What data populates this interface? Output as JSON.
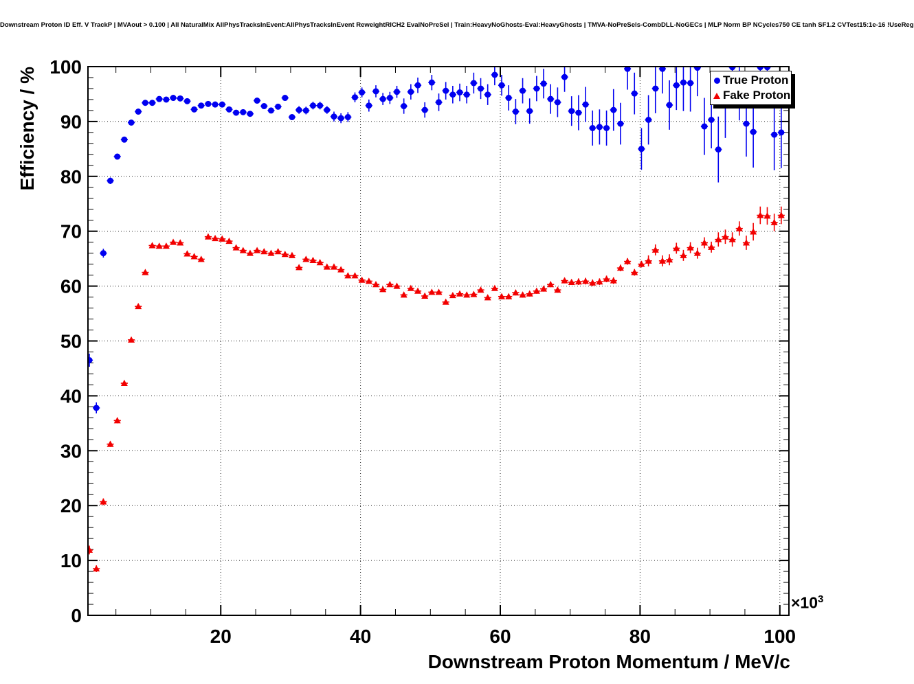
{
  "title": "Downstream Proton ID Eff. V TrackP | MVAout > 0.100 | All NaturalMix AllPhysTracksInEvent:AllPhysTracksInEvent ReweightRICH2 EvalNoPreSel | Train:HeavyNoGhosts-Eval:HeavyGhosts | TMVA-NoPreSels-CombDLL-NoGECs | MLP Norm BP NCycles750 CE tanh SF1.2 CVTest15:1e-16 !UseReg",
  "legend": {
    "entries": [
      {
        "label": "True Proton",
        "marker": "circle",
        "color": "#0000f0"
      },
      {
        "label": "Fake Proton",
        "marker": "triangle",
        "color": "#f20000"
      }
    ]
  },
  "colors": {
    "true_proton": "#0000f0",
    "fake_proton": "#f20000",
    "grid": "#222222",
    "axis": "#000000",
    "frame_bg": "#ffffff"
  },
  "chart_data": {
    "type": "scatter",
    "title": "Downstream Proton ID Eff. V TrackP",
    "xlabel": "Downstream Proton Momentum / MeV/c",
    "ylabel": "Efficiency / %",
    "x_power_prefix": "×10",
    "x_power_exponent": "3",
    "x_unit": "1000 MeV/c per x unit",
    "xlim": [
      1.0,
      101.3
    ],
    "ylim": [
      0,
      100
    ],
    "x_ticks": [
      20,
      40,
      60,
      80,
      100
    ],
    "x_minor_step": 5,
    "y_ticks": [
      0,
      10,
      20,
      30,
      40,
      50,
      60,
      70,
      80,
      90,
      100
    ],
    "y_minor_step": 2,
    "grid": "dotted",
    "legend_position": "top-right",
    "xerr": 0.5,
    "x": [
      1.2,
      2.2,
      3.2,
      4.2,
      5.2,
      6.2,
      7.2,
      8.2,
      9.2,
      10.2,
      11.2,
      12.2,
      13.2,
      14.2,
      15.2,
      16.2,
      17.2,
      18.2,
      19.2,
      20.2,
      21.2,
      22.2,
      23.2,
      24.2,
      25.2,
      26.2,
      27.2,
      28.2,
      29.2,
      30.2,
      31.2,
      32.2,
      33.2,
      34.2,
      35.2,
      36.2,
      37.2,
      38.2,
      39.2,
      40.2,
      41.2,
      42.2,
      43.2,
      44.2,
      45.2,
      46.2,
      47.2,
      48.2,
      49.2,
      50.2,
      51.2,
      52.2,
      53.2,
      54.2,
      55.2,
      56.2,
      57.2,
      58.2,
      59.2,
      60.2,
      61.2,
      62.2,
      63.2,
      64.2,
      65.2,
      66.2,
      67.2,
      68.2,
      69.2,
      70.2,
      71.2,
      72.2,
      73.2,
      74.2,
      75.2,
      76.2,
      77.2,
      78.2,
      79.2,
      80.2,
      81.2,
      82.2,
      83.2,
      84.2,
      85.2,
      86.2,
      87.2,
      88.2,
      89.2,
      90.2,
      91.2,
      92.2,
      93.2,
      94.2,
      95.2,
      96.2,
      97.2,
      98.2,
      99.2,
      100.2
    ],
    "series": [
      {
        "name": "True Proton",
        "color": "#0000f0",
        "marker": "circle",
        "y": [
          46.5,
          37.8,
          66.0,
          79.2,
          83.6,
          86.7,
          89.8,
          91.8,
          93.4,
          93.4,
          94.1,
          94.0,
          94.3,
          94.2,
          93.7,
          92.2,
          92.9,
          93.2,
          93.1,
          93.1,
          92.2,
          91.6,
          91.7,
          91.4,
          93.8,
          92.8,
          92.0,
          92.7,
          94.3,
          90.8,
          92.1,
          92.0,
          92.9,
          92.9,
          92.1,
          90.9,
          90.6,
          90.8,
          94.4,
          95.3,
          92.9,
          95.5,
          94.1,
          94.3,
          95.4,
          92.8,
          95.4,
          96.6,
          92.1,
          97.1,
          93.5,
          95.6,
          94.9,
          95.3,
          94.9,
          97.0,
          96.0,
          94.9,
          98.5,
          96.6,
          94.3,
          91.8,
          95.6,
          91.9,
          96.0,
          96.9,
          94.1,
          93.5,
          98.1,
          91.9,
          91.6,
          93.1,
          88.8,
          89.0,
          88.8,
          92.1,
          89.6,
          99.6,
          95.1,
          85.0,
          90.3,
          96.0,
          99.6,
          93.0,
          96.6,
          97.1,
          97.0,
          99.8,
          89.1,
          90.3,
          84.9,
          93.0,
          99.9,
          96.2,
          89.6,
          88.1,
          99.9,
          99.9,
          87.6,
          88.0
        ],
        "yerr": [
          1.2,
          1.0,
          0.8,
          0.6,
          0.5,
          0.4,
          0.4,
          0.3,
          0.3,
          0.3,
          0.3,
          0.3,
          0.3,
          0.3,
          0.3,
          0.4,
          0.4,
          0.4,
          0.4,
          0.4,
          0.45,
          0.45,
          0.45,
          0.45,
          0.45,
          0.5,
          0.5,
          0.5,
          0.5,
          0.5,
          0.7,
          0.7,
          0.7,
          0.7,
          0.7,
          0.9,
          0.9,
          0.9,
          0.9,
          0.9,
          1.1,
          1.1,
          1.1,
          1.1,
          1.1,
          1.4,
          1.4,
          1.4,
          1.4,
          1.4,
          1.6,
          1.6,
          1.6,
          1.6,
          1.6,
          1.9,
          1.9,
          1.9,
          1.9,
          1.9,
          2.3,
          2.3,
          2.3,
          2.3,
          2.3,
          2.7,
          2.7,
          2.7,
          2.7,
          2.7,
          3.2,
          3.2,
          3.2,
          3.2,
          3.2,
          3.8,
          3.8,
          3.8,
          3.8,
          3.8,
          4.5,
          4.5,
          4.5,
          4.5,
          4.5,
          5.2,
          5.2,
          5.2,
          5.2,
          5.2,
          6.0,
          6.0,
          6.0,
          6.0,
          6.0,
          6.5,
          6.5,
          6.5,
          6.5,
          6.5
        ]
      },
      {
        "name": "Fake Proton",
        "color": "#f20000",
        "marker": "triangle",
        "y": [
          11.9,
          8.5,
          20.7,
          31.2,
          35.5,
          42.3,
          50.2,
          56.3,
          62.5,
          67.4,
          67.3,
          67.3,
          68.0,
          67.9,
          65.9,
          65.4,
          64.9,
          69.0,
          68.7,
          68.6,
          68.2,
          67.0,
          66.5,
          66.0,
          66.5,
          66.3,
          66.0,
          66.3,
          65.8,
          65.6,
          63.4,
          64.9,
          64.7,
          64.3,
          63.5,
          63.5,
          63.0,
          61.9,
          61.9,
          61.1,
          60.9,
          60.3,
          59.4,
          60.3,
          60.0,
          58.4,
          59.6,
          59.1,
          58.2,
          58.9,
          58.9,
          57.1,
          58.3,
          58.6,
          58.4,
          58.5,
          59.3,
          57.9,
          59.6,
          58.1,
          58.1,
          58.8,
          58.4,
          58.6,
          59.1,
          59.5,
          60.3,
          59.3,
          61.0,
          60.7,
          60.8,
          60.9,
          60.6,
          60.8,
          61.3,
          61.0,
          63.3,
          64.5,
          62.5,
          64.0,
          64.6,
          66.6,
          64.6,
          64.8,
          66.9,
          65.6,
          67.0,
          66.0,
          67.9,
          67.1,
          68.5,
          69.0,
          68.5,
          70.5,
          67.9,
          69.9,
          72.9,
          72.8,
          71.6,
          72.9
        ],
        "yerr": [
          0.8,
          0.6,
          0.6,
          0.5,
          0.5,
          0.4,
          0.4,
          0.4,
          0.4,
          0.4,
          0.3,
          0.3,
          0.3,
          0.3,
          0.3,
          0.3,
          0.3,
          0.3,
          0.3,
          0.3,
          0.3,
          0.3,
          0.3,
          0.3,
          0.3,
          0.3,
          0.3,
          0.3,
          0.3,
          0.3,
          0.3,
          0.3,
          0.3,
          0.3,
          0.3,
          0.3,
          0.3,
          0.3,
          0.3,
          0.3,
          0.4,
          0.4,
          0.4,
          0.4,
          0.4,
          0.4,
          0.4,
          0.4,
          0.4,
          0.4,
          0.4,
          0.4,
          0.4,
          0.4,
          0.4,
          0.4,
          0.4,
          0.4,
          0.4,
          0.4,
          0.5,
          0.5,
          0.5,
          0.5,
          0.5,
          0.5,
          0.5,
          0.5,
          0.5,
          0.5,
          0.6,
          0.6,
          0.6,
          0.6,
          0.6,
          0.6,
          0.6,
          0.6,
          0.6,
          0.6,
          1.0,
          1.0,
          1.0,
          1.0,
          1.0,
          1.0,
          1.0,
          1.0,
          1.0,
          1.0,
          1.3,
          1.3,
          1.3,
          1.3,
          1.3,
          1.6,
          1.6,
          1.6,
          1.6,
          1.6
        ]
      }
    ]
  }
}
